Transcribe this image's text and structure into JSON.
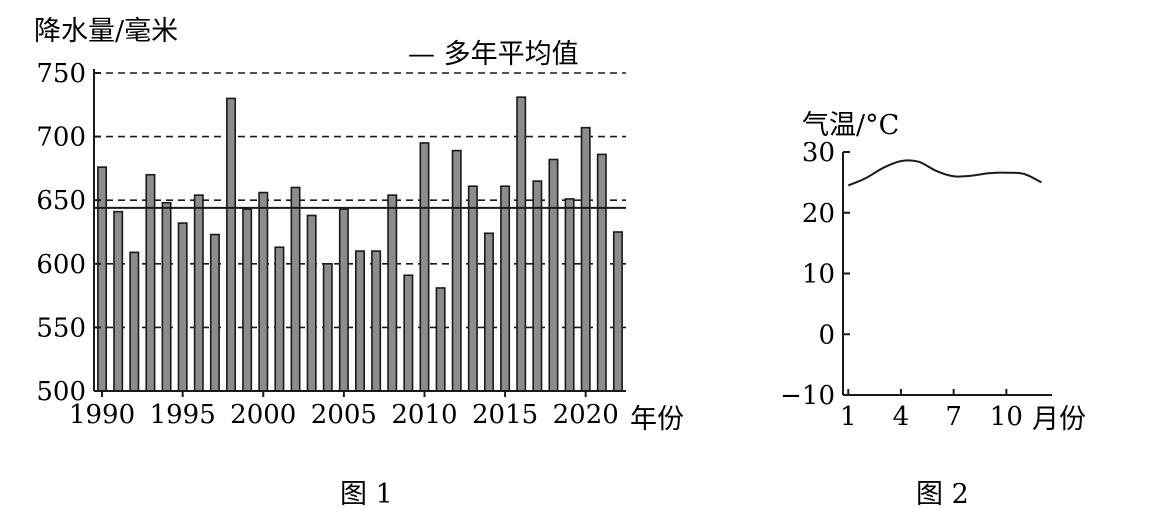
{
  "chart_data": [
    {
      "type": "bar",
      "figure_label": "图 1",
      "ylabel": "降水量/毫米",
      "xlabel": "年份",
      "legend": "— 多年平均值",
      "yticks": [
        500,
        550,
        600,
        650,
        700,
        750
      ],
      "xticks": [
        1990,
        1995,
        2000,
        2005,
        2010,
        2015,
        2020
      ],
      "ylim": [
        500,
        750
      ],
      "xlim": [
        1989.5,
        2022.5
      ],
      "dashed_lines": [
        550,
        600,
        650,
        700,
        750
      ],
      "average": 644,
      "color": "#8c8c8c",
      "x": [
        1990,
        1991,
        1992,
        1993,
        1994,
        1995,
        1996,
        1997,
        1998,
        1999,
        2000,
        2001,
        2002,
        2003,
        2004,
        2005,
        2006,
        2007,
        2008,
        2009,
        2010,
        2011,
        2012,
        2013,
        2014,
        2015,
        2016,
        2017,
        2018,
        2019,
        2020,
        2021,
        2022
      ],
      "values": [
        676,
        641,
        609,
        670,
        648,
        632,
        654,
        623,
        730,
        643,
        656,
        613,
        660,
        638,
        600,
        643,
        610,
        610,
        654,
        591,
        695,
        581,
        689,
        661,
        624,
        661,
        731,
        665,
        682,
        651,
        707,
        686,
        625
      ]
    },
    {
      "type": "line",
      "figure_label": "图 2",
      "ylabel": "气温/°C",
      "xlabel": "月份",
      "yticks": [
        -10,
        0,
        10,
        20,
        30
      ],
      "xticks": [
        1,
        4,
        7,
        10
      ],
      "ylim": [
        -10,
        30
      ],
      "xlim": [
        0.7,
        12.6
      ],
      "x": [
        1,
        2,
        3,
        4,
        5,
        6,
        7,
        8,
        9,
        10,
        11,
        12
      ],
      "values": [
        24.5,
        25.7,
        27.4,
        28.5,
        28.4,
        26.9,
        26.0,
        26.1,
        26.5,
        26.6,
        26.4,
        25.0
      ]
    }
  ]
}
